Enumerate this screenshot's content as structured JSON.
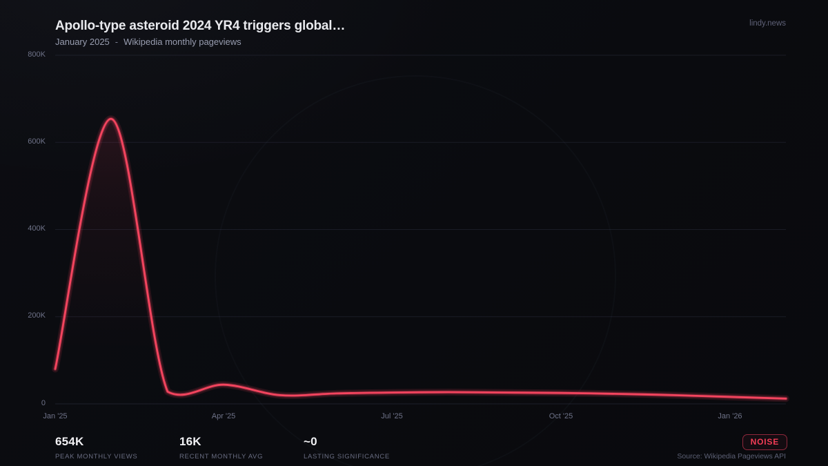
{
  "header": {
    "title": "Apollo-type asteroid 2024 YR4 triggers global…",
    "period": "January 2025",
    "separator": "-",
    "source_label": "Wikipedia monthly pageviews",
    "brand": "lindy.news"
  },
  "stats": [
    {
      "value": "654K",
      "label": "PEAK MONTHLY VIEWS"
    },
    {
      "value": "16K",
      "label": "RECENT MONTHLY AVG"
    },
    {
      "value": "~0",
      "label": "LASTING SIGNIFICANCE"
    }
  ],
  "badge": {
    "label": "NOISE"
  },
  "source_note": "Source: Wikipedia Pageviews API",
  "colors": {
    "line": "#f43f5e",
    "background": "#0a0b0f",
    "grid": "rgba(110,120,160,0.16)",
    "badge": "#f43f5e"
  },
  "chart_data": {
    "type": "line",
    "title": "Apollo-type asteroid 2024 YR4 triggers global… — Wikipedia monthly pageviews",
    "x": [
      "Jan '25",
      "Feb '25",
      "Mar '25",
      "Apr '25",
      "May '25",
      "Jun '25",
      "Jul '25",
      "Aug '25",
      "Sep '25",
      "Oct '25",
      "Nov '25",
      "Dec '25",
      "Jan '26",
      "Feb '26"
    ],
    "values": [
      80000,
      654000,
      28000,
      44000,
      20000,
      24000,
      26000,
      27000,
      26000,
      25000,
      23000,
      20000,
      16000,
      12000
    ],
    "xlabel": "",
    "ylabel": "Monthly pageviews",
    "ylim": [
      0,
      800000
    ],
    "grid": true,
    "legend": "none",
    "ytick_labels": [
      "800K",
      "600K",
      "400K",
      "200K",
      "0"
    ],
    "xtick_labels": [
      "Jan '25",
      "Apr '25",
      "Jul '25",
      "Oct '25",
      "Jan '26"
    ]
  }
}
